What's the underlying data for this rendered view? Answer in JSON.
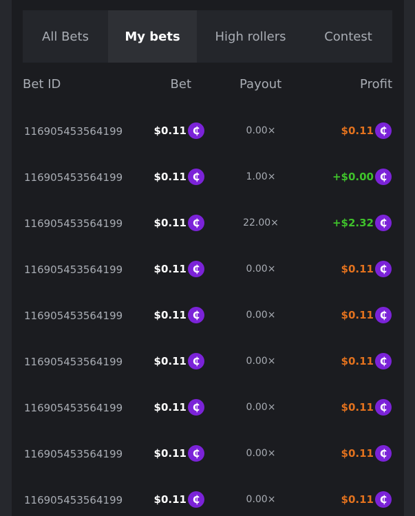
{
  "tabs": [
    {
      "label": "All Bets"
    },
    {
      "label": "My bets",
      "active": true
    },
    {
      "label": "High rollers"
    },
    {
      "label": "Contest"
    }
  ],
  "headers": {
    "bet_id": "Bet ID",
    "bet": "Bet",
    "payout": "Payout",
    "profit": "Profit"
  },
  "colors": {
    "loss": "#e3721e",
    "win": "#3fc22b",
    "coin": "#7b23d8"
  },
  "coin_icon": "coin-icon",
  "coin_glyph": "₵",
  "rows": [
    {
      "id": "116905453564199",
      "bet": "$0.11",
      "payout": "0.00×",
      "profit": "$0.11",
      "win": false
    },
    {
      "id": "116905453564199",
      "bet": "$0.11",
      "payout": "1.00×",
      "profit": "+$0.00",
      "win": true
    },
    {
      "id": "116905453564199",
      "bet": "$0.11",
      "payout": "22.00×",
      "profit": "+$2.32",
      "win": true
    },
    {
      "id": "116905453564199",
      "bet": "$0.11",
      "payout": "0.00×",
      "profit": "$0.11",
      "win": false
    },
    {
      "id": "116905453564199",
      "bet": "$0.11",
      "payout": "0.00×",
      "profit": "$0.11",
      "win": false
    },
    {
      "id": "116905453564199",
      "bet": "$0.11",
      "payout": "0.00×",
      "profit": "$0.11",
      "win": false
    },
    {
      "id": "116905453564199",
      "bet": "$0.11",
      "payout": "0.00×",
      "profit": "$0.11",
      "win": false
    },
    {
      "id": "116905453564199",
      "bet": "$0.11",
      "payout": "0.00×",
      "profit": "$0.11",
      "win": false
    },
    {
      "id": "116905453564199",
      "bet": "$0.11",
      "payout": "0.00×",
      "profit": "$0.11",
      "win": false
    }
  ]
}
